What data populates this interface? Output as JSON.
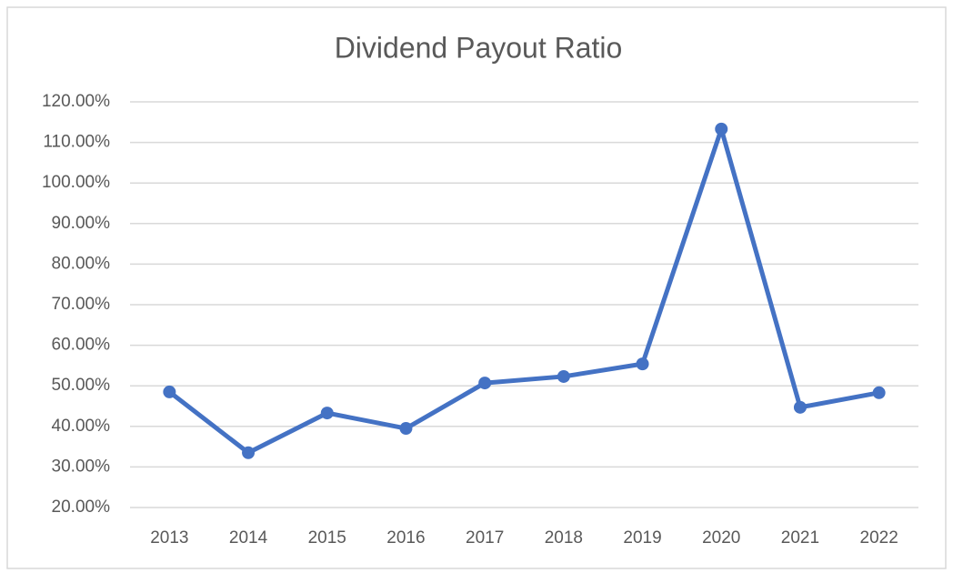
{
  "chart_data": {
    "type": "line",
    "title": "Dividend Payout Ratio",
    "categories": [
      "2013",
      "2014",
      "2015",
      "2016",
      "2017",
      "2018",
      "2019",
      "2020",
      "2021",
      "2022"
    ],
    "values": [
      48.5,
      33.5,
      43.3,
      39.5,
      50.7,
      52.3,
      55.4,
      113.3,
      44.7,
      48.3
    ],
    "color": "#4472c4",
    "ylim": [
      20,
      120
    ],
    "yticks": [
      {
        "value": 20,
        "label": "20.00%"
      },
      {
        "value": 30,
        "label": "30.00%"
      },
      {
        "value": 40,
        "label": "40.00%"
      },
      {
        "value": 50,
        "label": "50.00%"
      },
      {
        "value": 60,
        "label": "60.00%"
      },
      {
        "value": 70,
        "label": "70.00%"
      },
      {
        "value": 80,
        "label": "80.00%"
      },
      {
        "value": 90,
        "label": "90.00%"
      },
      {
        "value": 100,
        "label": "100.00%"
      },
      {
        "value": 110,
        "label": "110.00%"
      },
      {
        "value": 120,
        "label": "120.00%"
      }
    ],
    "grid": true
  }
}
